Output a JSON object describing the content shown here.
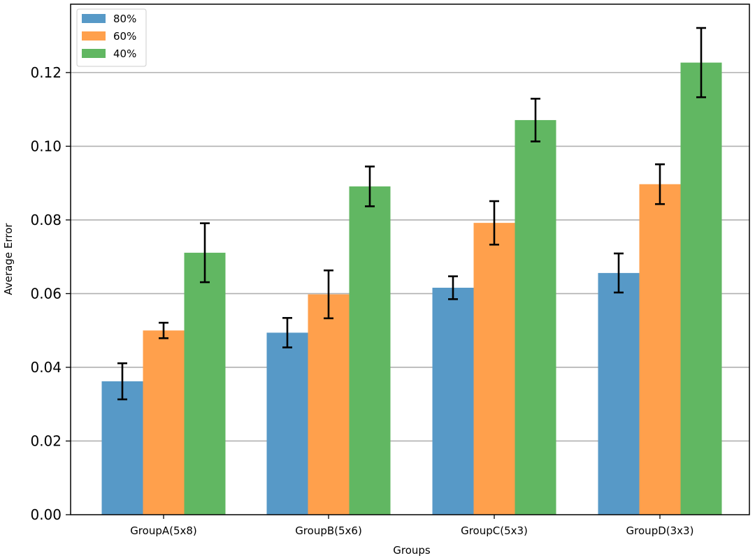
{
  "chart_data": {
    "type": "bar",
    "title": "",
    "xlabel": "Groups",
    "ylabel": "Average Error",
    "categories": [
      "GroupA(5x8)",
      "GroupB(5x6)",
      "GroupC(5x3)",
      "GroupD(3x3)"
    ],
    "ylim": [
      0,
      0.1335
    ],
    "yticks": [
      "0.00",
      "0.02",
      "0.04",
      "0.06",
      "0.08",
      "0.10",
      "0.12"
    ],
    "ytick_values": [
      0,
      0.02,
      0.04,
      0.06,
      0.08,
      0.1,
      0.12
    ],
    "grid": "horizontal",
    "legend_position": "top-left",
    "series": [
      {
        "name": "80%",
        "color": "#5799c7",
        "values": [
          0.0362,
          0.0494,
          0.0616,
          0.0656
        ],
        "errors": [
          0.0049,
          0.004,
          0.0031,
          0.0053
        ]
      },
      {
        "name": "60%",
        "color": "#ffa04c",
        "values": [
          0.05,
          0.0598,
          0.0792,
          0.0897
        ],
        "errors": [
          0.0021,
          0.0065,
          0.0059,
          0.0054
        ]
      },
      {
        "name": "40%",
        "color": "#61b762",
        "values": [
          0.0711,
          0.0891,
          0.1071,
          0.1227
        ],
        "errors": [
          0.008,
          0.0054,
          0.0058,
          0.0094
        ]
      }
    ]
  }
}
